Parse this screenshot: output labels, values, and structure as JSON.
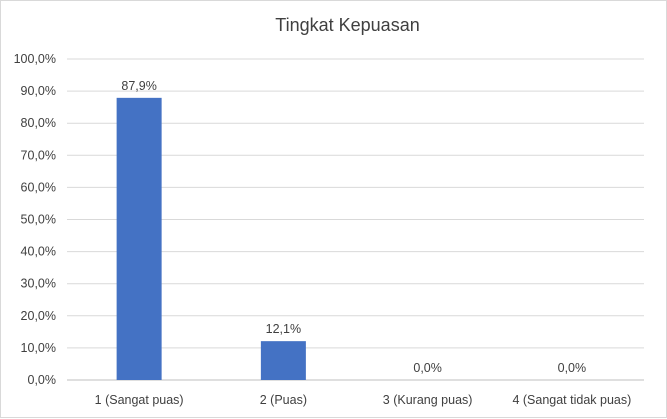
{
  "chart_data": {
    "type": "bar",
    "title": "Tingkat Kepuasan",
    "categories": [
      "1 (Sangat puas)",
      "2 (Puas)",
      "3 (Kurang puas)",
      "4 (Sangat tidak puas)"
    ],
    "values": [
      87.9,
      12.1,
      0.0,
      0.0
    ],
    "data_labels": [
      "87,9%",
      "12,1%",
      "0,0%",
      "0,0%"
    ],
    "yticks": [
      "0,0%",
      "10,0%",
      "20,0%",
      "30,0%",
      "40,0%",
      "50,0%",
      "60,0%",
      "70,0%",
      "80,0%",
      "90,0%",
      "100,0%"
    ],
    "ylim": [
      0,
      100
    ],
    "xlabel": "",
    "ylabel": "",
    "grid": true,
    "legend": "none",
    "bar_color": "#4472c4",
    "gridline_color": "#d9d9d9",
    "text_color": "#404040"
  }
}
